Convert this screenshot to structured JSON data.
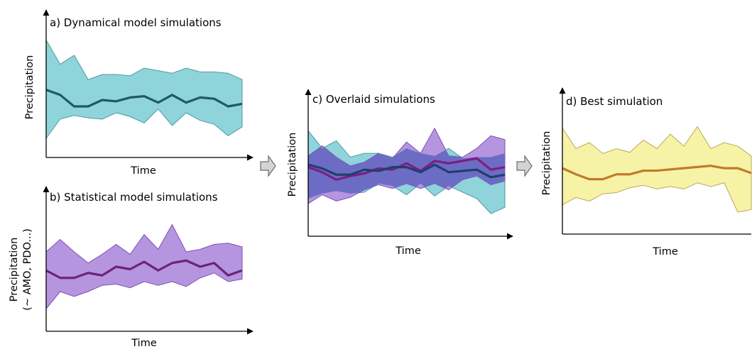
{
  "figure": {
    "arrow_color": "#d4d4d4",
    "arrow_outline": "#6b6b6b"
  },
  "chart_data": [
    {
      "type": "area",
      "title": "a) Dynamical model simulations",
      "xlabel": "Time",
      "ylabel": "Precipitation",
      "grid": false,
      "band_color": "#8fd3db",
      "band_edge": "#4f9aa4",
      "line_color": "#1f5a60",
      "x": [
        0,
        1,
        2,
        3,
        4,
        5,
        6,
        7,
        8,
        9,
        10,
        11,
        12,
        13,
        14
      ],
      "ylim": [
        0,
        1
      ],
      "series": [
        {
          "role": "upper",
          "values": [
            0.92,
            0.73,
            0.8,
            0.61,
            0.65,
            0.65,
            0.64,
            0.7,
            0.68,
            0.66,
            0.7,
            0.67,
            0.67,
            0.66,
            0.61
          ]
        },
        {
          "role": "median",
          "values": [
            0.53,
            0.49,
            0.4,
            0.4,
            0.45,
            0.44,
            0.47,
            0.48,
            0.43,
            0.49,
            0.43,
            0.47,
            0.46,
            0.4,
            0.42
          ]
        },
        {
          "role": "lower",
          "values": [
            0.15,
            0.3,
            0.33,
            0.31,
            0.3,
            0.35,
            0.32,
            0.27,
            0.38,
            0.25,
            0.35,
            0.29,
            0.26,
            0.17,
            0.24
          ]
        }
      ]
    },
    {
      "type": "area",
      "title": "b) Statistical model simulations",
      "xlabel": "Time",
      "ylabel": "Precipitation",
      "ylabel2": "(~ AMO, PDO...)",
      "grid": false,
      "band_color": "#b595e0",
      "band_edge": "#7b52b0",
      "line_color": "#6b2575",
      "x": [
        0,
        1,
        2,
        3,
        4,
        5,
        6,
        7,
        8,
        9,
        10,
        11,
        12,
        13,
        14
      ],
      "ylim": [
        0,
        1
      ],
      "series": [
        {
          "role": "upper",
          "values": [
            0.64,
            0.74,
            0.64,
            0.55,
            0.62,
            0.7,
            0.62,
            0.78,
            0.66,
            0.86,
            0.64,
            0.66,
            0.7,
            0.71,
            0.68
          ]
        },
        {
          "role": "median",
          "values": [
            0.49,
            0.43,
            0.43,
            0.47,
            0.45,
            0.52,
            0.5,
            0.56,
            0.49,
            0.55,
            0.57,
            0.52,
            0.55,
            0.45,
            0.49
          ]
        },
        {
          "role": "lower",
          "values": [
            0.18,
            0.32,
            0.28,
            0.32,
            0.37,
            0.38,
            0.35,
            0.4,
            0.37,
            0.4,
            0.36,
            0.43,
            0.47,
            0.4,
            0.42
          ]
        }
      ]
    },
    {
      "type": "area",
      "title": "c) Overlaid simulations",
      "xlabel": "Time",
      "ylabel": "Precipitation",
      "grid": false,
      "x": [
        0,
        1,
        2,
        3,
        4,
        5,
        6,
        7,
        8,
        9,
        10,
        11,
        12,
        13,
        14
      ],
      "ylim": [
        0,
        1
      ],
      "series": [
        {
          "role": "band",
          "band_color": "#8fd3db",
          "band_edge": "#4f9aa4",
          "line_color": "#1f3f6e",
          "upper": [
            0.84,
            0.7,
            0.76,
            0.63,
            0.66,
            0.66,
            0.63,
            0.7,
            0.66,
            0.64,
            0.7,
            0.62,
            0.63,
            0.63,
            0.66
          ],
          "median": [
            0.57,
            0.54,
            0.49,
            0.49,
            0.53,
            0.52,
            0.55,
            0.55,
            0.51,
            0.57,
            0.51,
            0.52,
            0.53,
            0.47,
            0.49
          ],
          "lower": [
            0.3,
            0.34,
            0.36,
            0.34,
            0.35,
            0.42,
            0.4,
            0.33,
            0.42,
            0.32,
            0.4,
            0.35,
            0.3,
            0.18,
            0.23
          ]
        },
        {
          "role": "band",
          "band_color": "#b595e0",
          "band_edge": "#7b52b0",
          "line_color": "#7a1f80",
          "upper": [
            0.64,
            0.72,
            0.63,
            0.56,
            0.59,
            0.66,
            0.62,
            0.75,
            0.66,
            0.86,
            0.64,
            0.63,
            0.7,
            0.8,
            0.77
          ],
          "median": [
            0.55,
            0.51,
            0.45,
            0.48,
            0.5,
            0.54,
            0.53,
            0.58,
            0.52,
            0.6,
            0.58,
            0.6,
            0.62,
            0.53,
            0.55
          ],
          "lower": [
            0.26,
            0.33,
            0.28,
            0.31,
            0.37,
            0.41,
            0.38,
            0.42,
            0.38,
            0.42,
            0.37,
            0.45,
            0.48,
            0.41,
            0.44
          ]
        }
      ],
      "overlap_color": "#6c6cc4"
    },
    {
      "type": "area",
      "title": "d) Best simulation",
      "xlabel": "Time",
      "ylabel": "Precipitation",
      "grid": false,
      "band_color": "#f7f3a6",
      "band_edge": "#b8a85a",
      "line_color": "#c27a2a",
      "x": [
        0,
        1,
        2,
        3,
        4,
        5,
        6,
        7,
        8,
        9,
        10,
        11,
        12,
        13,
        14
      ],
      "ylim": [
        0,
        1
      ],
      "series": [
        {
          "role": "upper",
          "values": [
            0.87,
            0.7,
            0.75,
            0.66,
            0.7,
            0.67,
            0.77,
            0.7,
            0.82,
            0.72,
            0.88,
            0.7,
            0.75,
            0.72,
            0.64
          ]
        },
        {
          "role": "median",
          "values": [
            0.54,
            0.49,
            0.45,
            0.45,
            0.49,
            0.49,
            0.52,
            0.52,
            0.53,
            0.54,
            0.55,
            0.56,
            0.54,
            0.54,
            0.5
          ]
        },
        {
          "role": "lower",
          "values": [
            0.24,
            0.3,
            0.27,
            0.33,
            0.34,
            0.38,
            0.4,
            0.37,
            0.39,
            0.37,
            0.42,
            0.39,
            0.42,
            0.18,
            0.2
          ]
        }
      ]
    }
  ]
}
